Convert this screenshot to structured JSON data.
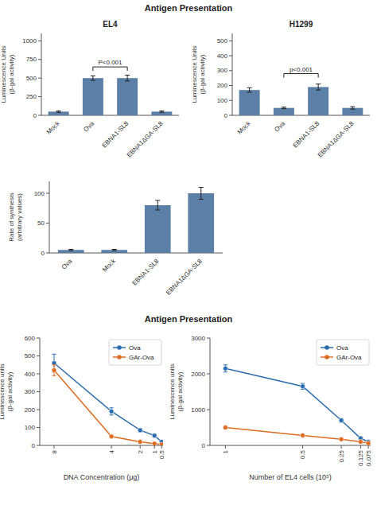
{
  "chart_data": [
    {
      "type": "bar",
      "subtitle": "Antigen Presentation",
      "title": "EL4",
      "categories": [
        "Mock",
        "Ova",
        "EBNA1-SL8",
        "EBNA1ΔGA-SL8"
      ],
      "values": [
        50,
        500,
        500,
        50
      ],
      "errors": [
        10,
        30,
        40,
        10
      ],
      "color": "#5b7fa6",
      "ylabel": "Luminescence Units\n(β-gal activity)",
      "ylim": [
        0,
        1100
      ],
      "yticks": [
        0,
        250,
        500,
        750,
        1000
      ],
      "annotations": [
        {
          "text": "P<0.001",
          "x": [
            "Ova",
            "EBNA1-SL8"
          ],
          "y": 650
        }
      ]
    },
    {
      "type": "bar",
      "title": "H1299",
      "categories": [
        "Mock",
        "Ova",
        "EBNA1-SL8",
        "EBNA1ΔGA-SL8"
      ],
      "values": [
        170,
        50,
        190,
        50
      ],
      "errors": [
        15,
        5,
        20,
        8
      ],
      "color": "#5b7fa6",
      "ylabel": "Luminescence Units\n(β-gal activity)",
      "ylim": [
        0,
        550
      ],
      "yticks": [
        0,
        100,
        200,
        300,
        400,
        500
      ],
      "annotations": [
        {
          "text": "p<0.001",
          "x": [
            "Ova",
            "EBNA1-SL8"
          ],
          "y": 280
        }
      ]
    },
    {
      "type": "bar",
      "categories": [
        "Ova",
        "Mock",
        "EBNA1-SL8",
        "EBNA1ΔGA-SL8"
      ],
      "values": [
        5,
        5,
        80,
        100
      ],
      "errors": [
        1,
        1,
        8,
        10
      ],
      "color": "#5b7fa6",
      "ylabel": "Rate of synthesis\n(arbitrary values)",
      "ylim": [
        0,
        120
      ],
      "yticks": [
        0,
        50,
        100
      ]
    },
    {
      "type": "line",
      "subtitle": "Antigen Presentation",
      "xlabel": "DNA Concentration (μg)",
      "ylabel": "Luminescence units\n(β-gal activity)",
      "x": [
        8,
        4,
        2,
        1,
        0.5
      ],
      "xlim": [
        9,
        0.4
      ],
      "xticks": [
        8,
        4,
        2,
        1,
        0.5
      ],
      "ylim": [
        0,
        600
      ],
      "yticks": [
        0,
        100,
        200,
        300,
        400,
        500,
        600
      ],
      "legend": "upper right",
      "series": [
        {
          "name": "Ova",
          "color": "#2b6cb0",
          "marker": "circle",
          "values": [
            460,
            190,
            85,
            55,
            20
          ],
          "errors": [
            50,
            20,
            10,
            8,
            5
          ]
        },
        {
          "name": "GAr-Ova",
          "color": "#dd6b20",
          "marker": "circle",
          "values": [
            420,
            50,
            20,
            10,
            5
          ],
          "errors": [
            30,
            5,
            3,
            2,
            1
          ]
        }
      ]
    },
    {
      "type": "line",
      "xlabel": "Number of EL4 cells (10⁵)",
      "ylabel": "Luminescence units\n(β-gal activity)",
      "x": [
        1,
        0.5,
        0.25,
        0.125,
        0.075
      ],
      "xlim": [
        1.1,
        0.06
      ],
      "xticks": [
        1,
        0.5,
        0.25,
        0.125,
        0.075
      ],
      "ylim": [
        0,
        3000
      ],
      "yticks": [
        0,
        1000,
        2000,
        3000
      ],
      "legend": "upper right",
      "series": [
        {
          "name": "Ova",
          "color": "#2b6cb0",
          "marker": "circle",
          "values": [
            2150,
            1650,
            700,
            200,
            100
          ],
          "errors": [
            100,
            80,
            50,
            20,
            10
          ]
        },
        {
          "name": "GAr-Ova",
          "color": "#dd6b20",
          "marker": "circle",
          "values": [
            500,
            280,
            170,
            100,
            60
          ],
          "errors": [
            40,
            25,
            15,
            10,
            5
          ]
        }
      ]
    }
  ]
}
